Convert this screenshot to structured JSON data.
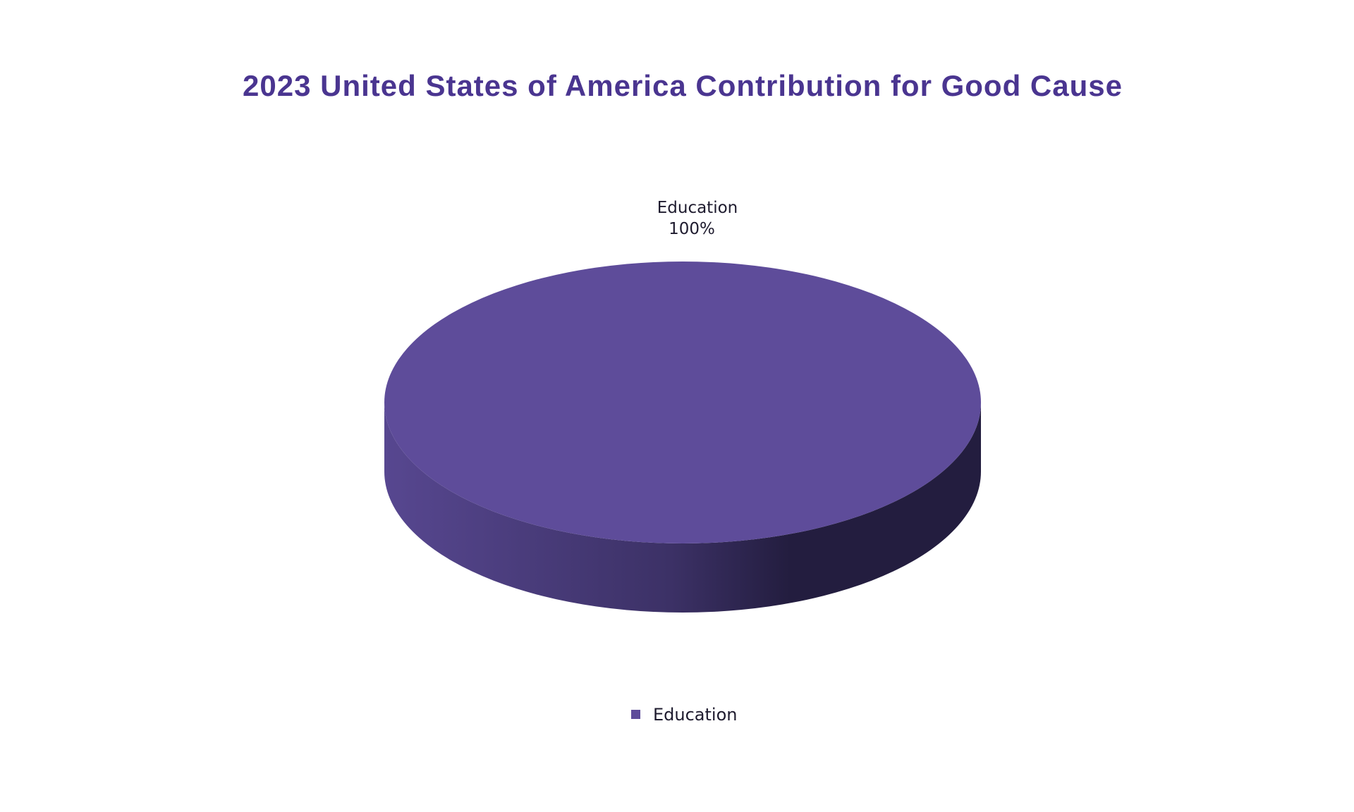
{
  "chart_data": {
    "type": "pie",
    "title": "2023 United States of America Contribution for Good Cause",
    "slices": [
      {
        "label": "Education",
        "value": 100,
        "percent_label": "100%",
        "color": "#5e4c9a"
      }
    ],
    "legend": {
      "position": "bottom",
      "items": [
        "Education"
      ]
    },
    "style": {
      "title_color": "#4a3590",
      "side_color_light": "#574790",
      "side_color_dark": "#231d3f",
      "three_d": true
    }
  }
}
